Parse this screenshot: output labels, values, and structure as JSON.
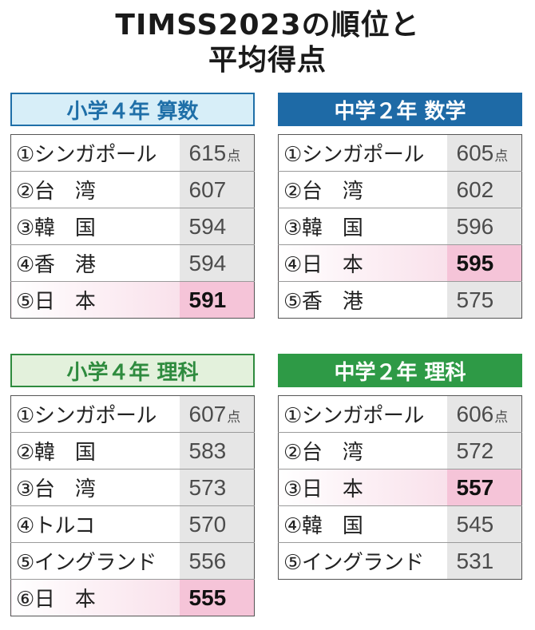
{
  "title": {
    "line1": "TIMSS2023の順位と",
    "line2": "平均得点"
  },
  "chart_data": [
    {
      "type": "table",
      "title": "小学４年 算数",
      "unit": "点",
      "header_bg": "#d7eef8",
      "header_border": "#1f6fa8",
      "header_text": "#1f6fa8",
      "rows": [
        {
          "rank": "①",
          "name": "シンガポール",
          "score": 615,
          "highlight": false
        },
        {
          "rank": "②",
          "name": "台 湾",
          "score": 607,
          "highlight": false
        },
        {
          "rank": "③",
          "name": "韓 国",
          "score": 594,
          "highlight": false
        },
        {
          "rank": "④",
          "name": "香 港",
          "score": 594,
          "highlight": false
        },
        {
          "rank": "⑤",
          "name": "日 本",
          "score": 591,
          "highlight": true
        }
      ]
    },
    {
      "type": "table",
      "title": "中学２年 数学",
      "unit": "点",
      "header_bg": "#1e6aa6",
      "header_border": "#1e6aa6",
      "header_text": "#ffffff",
      "rows": [
        {
          "rank": "①",
          "name": "シンガポール",
          "score": 605,
          "highlight": false
        },
        {
          "rank": "②",
          "name": "台 湾",
          "score": 602,
          "highlight": false
        },
        {
          "rank": "③",
          "name": "韓 国",
          "score": 596,
          "highlight": false
        },
        {
          "rank": "④",
          "name": "日 本",
          "score": 595,
          "highlight": true
        },
        {
          "rank": "⑤",
          "name": "香 港",
          "score": 575,
          "highlight": false
        }
      ]
    },
    {
      "type": "table",
      "title": "小学４年 理科",
      "unit": "点",
      "header_bg": "#e3f1dc",
      "header_border": "#2e8b3e",
      "header_text": "#2e8b3e",
      "rows": [
        {
          "rank": "①",
          "name": "シンガポール",
          "score": 607,
          "highlight": false
        },
        {
          "rank": "②",
          "name": "韓 国",
          "score": 583,
          "highlight": false
        },
        {
          "rank": "③",
          "name": "台 湾",
          "score": 573,
          "highlight": false
        },
        {
          "rank": "④",
          "name": "トルコ",
          "score": 570,
          "highlight": false
        },
        {
          "rank": "⑤",
          "name": "イングランド",
          "score": 556,
          "highlight": false
        },
        {
          "rank": "⑥",
          "name": "日 本",
          "score": 555,
          "highlight": true
        }
      ]
    },
    {
      "type": "table",
      "title": "中学２年 理科",
      "unit": "点",
      "header_bg": "#2e9a46",
      "header_border": "#2e9a46",
      "header_text": "#ffffff",
      "rows": [
        {
          "rank": "①",
          "name": "シンガポール",
          "score": 606,
          "highlight": false
        },
        {
          "rank": "②",
          "name": "台 湾",
          "score": 572,
          "highlight": false
        },
        {
          "rank": "③",
          "name": "日 本",
          "score": 557,
          "highlight": true
        },
        {
          "rank": "④",
          "name": "韓 国",
          "score": 545,
          "highlight": false
        },
        {
          "rank": "⑤",
          "name": "イングランド",
          "score": 531,
          "highlight": false
        }
      ]
    }
  ]
}
